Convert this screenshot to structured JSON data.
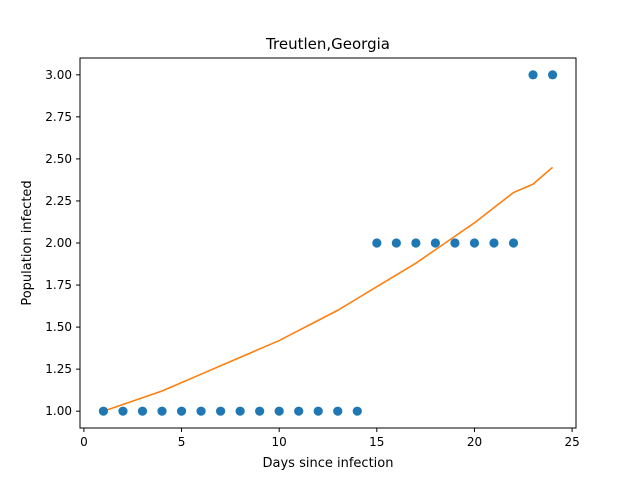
{
  "chart_data": {
    "type": "scatter",
    "title": "Treutlen,Georgia",
    "xlabel": "Days since infection",
    "ylabel": "Population infected",
    "xlim": [
      -0.2,
      25.2
    ],
    "ylim": [
      0.9,
      3.1
    ],
    "xticks": [
      0,
      5,
      10,
      15,
      20,
      25
    ],
    "yticks": [
      1.0,
      1.25,
      1.5,
      1.75,
      2.0,
      2.25,
      2.5,
      2.75,
      3.0
    ],
    "xtick_labels": [
      "0",
      "5",
      "10",
      "15",
      "20",
      "25"
    ],
    "ytick_labels": [
      "1.00",
      "1.25",
      "1.50",
      "1.75",
      "2.00",
      "2.25",
      "2.50",
      "2.75",
      "3.00"
    ],
    "grid": false,
    "legend": "none",
    "series": [
      {
        "type": "scatter",
        "color": "#1f77b4",
        "x": [
          1,
          2,
          3,
          4,
          5,
          6,
          7,
          8,
          9,
          10,
          11,
          12,
          13,
          14,
          15,
          16,
          17,
          18,
          19,
          20,
          21,
          22,
          23,
          24
        ],
        "y": [
          1,
          1,
          1,
          1,
          1,
          1,
          1,
          1,
          1,
          1,
          1,
          1,
          1,
          1,
          2,
          2,
          2,
          2,
          2,
          2,
          2,
          2,
          3,
          3
        ]
      },
      {
        "type": "line",
        "color": "#ff7f0e",
        "x": [
          1,
          2,
          3,
          4,
          5,
          6,
          7,
          8,
          9,
          10,
          11,
          12,
          13,
          14,
          15,
          16,
          17,
          18,
          19,
          20,
          21,
          22,
          23,
          24
        ],
        "y": [
          1.0,
          1.04,
          1.08,
          1.12,
          1.17,
          1.22,
          1.27,
          1.32,
          1.37,
          1.42,
          1.48,
          1.54,
          1.6,
          1.67,
          1.74,
          1.81,
          1.88,
          1.96,
          2.04,
          2.12,
          2.21,
          2.3,
          2.35,
          2.45
        ]
      }
    ]
  }
}
